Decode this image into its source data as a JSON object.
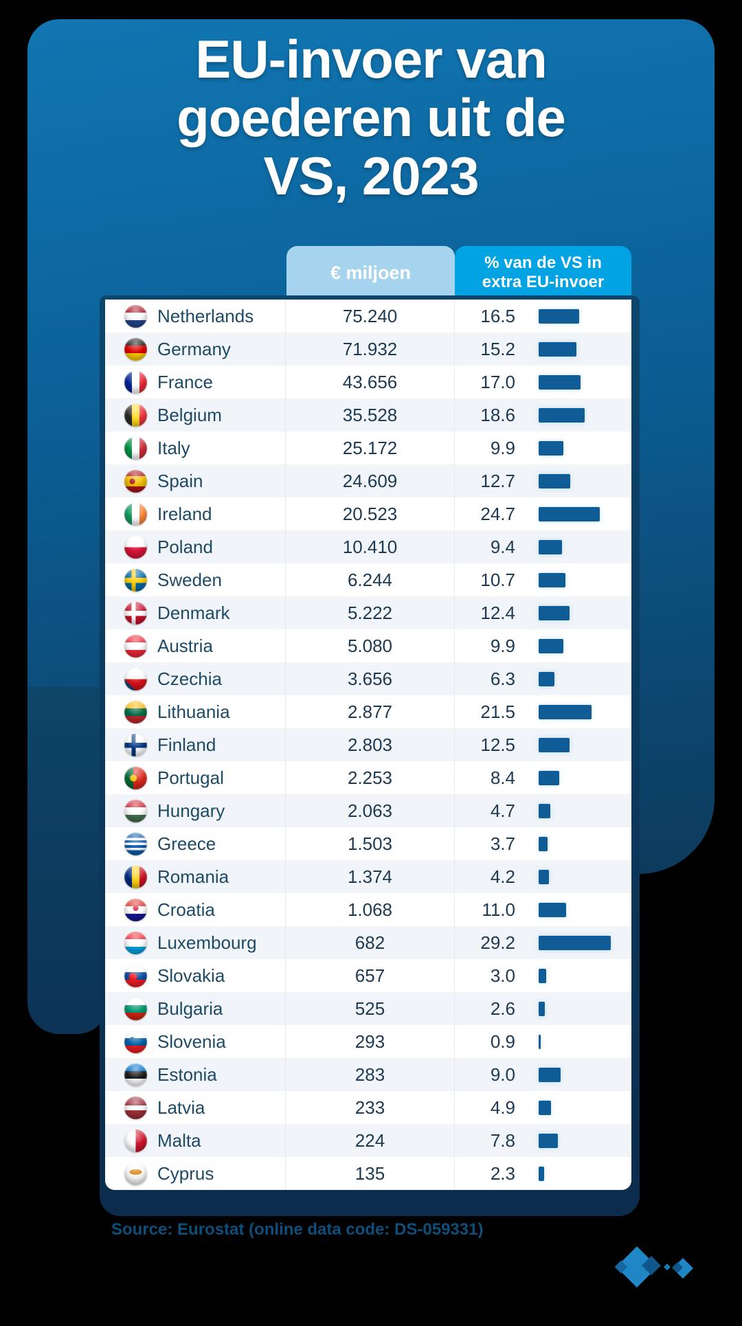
{
  "title": "EU-invoer van goederen uit de VS, 2023",
  "columns": {
    "value_label": "€ miljoen",
    "pct_label_line1": "% van de VS in",
    "pct_label_line2": "extra EU-invoer"
  },
  "source": "Source: Eurostat (online data code: DS-059331)",
  "colors": {
    "card_top": "#1176b2",
    "card_bottom": "#0d3a5c",
    "header_pill_light": "#a6d4ef",
    "header_pill_bright": "#01a3e2",
    "table_frame_navy": "#0d466d",
    "row_alt": "#f1f4f8",
    "bar": "#0f5c96",
    "country_text": "#1c4a67",
    "value_text": "#1c3a53",
    "source_text": "#0d4e7a",
    "logo_bright_blue": "#1f87c5",
    "logo_dark_blue": "#10568a"
  },
  "chart_data": {
    "type": "bar",
    "title": "EU-invoer van goederen uit de VS, 2023",
    "orientation": "horizontal",
    "grid": false,
    "legend_position": "column-headers",
    "categories": [
      "Netherlands",
      "Germany",
      "France",
      "Belgium",
      "Italy",
      "Spain",
      "Ireland",
      "Poland",
      "Sweden",
      "Denmark",
      "Austria",
      "Czechia",
      "Lithuania",
      "Finland",
      "Portugal",
      "Hungary",
      "Greece",
      "Romania",
      "Croatia",
      "Luxembourg",
      "Slovakia",
      "Bulgaria",
      "Slovenia",
      "Estonia",
      "Latvia",
      "Malta",
      "Cyprus"
    ],
    "series": [
      {
        "name": "€ miljoen",
        "values": [
          75240,
          71932,
          43656,
          35528,
          25172,
          24609,
          20523,
          10410,
          6244,
          5222,
          5080,
          3656,
          2877,
          2803,
          2253,
          2063,
          1503,
          1374,
          1068,
          682,
          657,
          525,
          293,
          283,
          233,
          224,
          135
        ]
      },
      {
        "name": "% van de VS in extra EU-invoer",
        "values": [
          16.5,
          15.2,
          17.0,
          18.6,
          9.9,
          12.7,
          24.7,
          9.4,
          10.7,
          12.4,
          9.9,
          6.3,
          21.5,
          12.5,
          8.4,
          4.7,
          3.7,
          4.2,
          11.0,
          29.2,
          3.0,
          2.6,
          0.9,
          9.0,
          4.9,
          7.8,
          2.3
        ],
        "xlim": [
          0,
          30
        ]
      }
    ]
  },
  "countries": [
    {
      "name": "Netherlands",
      "value": "75.240",
      "pct": "16.5",
      "flag_css": "linear-gradient(180deg,#ae1c28 33%,#ffffff 33% 66%,#21468b 66%)"
    },
    {
      "name": "Germany",
      "value": "71.932",
      "pct": "15.2",
      "flag_css": "linear-gradient(180deg,#1a1a1a 33%,#dd0000 33% 66%,#ffce00 66%)"
    },
    {
      "name": "France",
      "value": "43.656",
      "pct": "17.0",
      "flag_css": "linear-gradient(90deg,#002395 33%,#ffffff 33% 66%,#ed2939 66%)"
    },
    {
      "name": "Belgium",
      "value": "35.528",
      "pct": "18.6",
      "flag_css": "linear-gradient(90deg,#2d2926 33%,#fdda24 33% 66%,#ef3340 66%)"
    },
    {
      "name": "Italy",
      "value": "25.172",
      "pct": "9.9",
      "flag_css": "linear-gradient(90deg,#009246 33%,#ffffff 33% 66%,#ce2b37 66%)"
    },
    {
      "name": "Spain",
      "value": "24.609",
      "pct": "12.7",
      "flag_css": "radial-gradient(circle at 35% 50%,#aa151b 0 4px,rgba(0,0,0,0) 4px),linear-gradient(180deg,#aa151b 27%,#f1bf00 27% 73%,#aa151b 73%)"
    },
    {
      "name": "Ireland",
      "value": "20.523",
      "pct": "24.7",
      "flag_css": "linear-gradient(90deg,#169b62 33%,#ffffff 33% 66%,#ff883e 66%)"
    },
    {
      "name": "Poland",
      "value": "10.410",
      "pct": "9.4",
      "flag_css": "linear-gradient(180deg,#ffffff 50%,#dc143c 50%)"
    },
    {
      "name": "Sweden",
      "value": "6.244",
      "pct": "10.7",
      "flag_css": "linear-gradient(180deg,rgba(0,0,0,0) 40%,#fecc02 40% 62%,rgba(0,0,0,0) 62%),linear-gradient(90deg,#006aa7 32%,#fecc02 32% 50%,#006aa7 50%)"
    },
    {
      "name": "Denmark",
      "value": "5.222",
      "pct": "12.4",
      "flag_css": "linear-gradient(180deg,rgba(0,0,0,0) 40%,#ffffff 40% 62%,rgba(0,0,0,0) 62%),linear-gradient(90deg,#c8102e 32%,#ffffff 32% 50%,#c8102e 50%)"
    },
    {
      "name": "Austria",
      "value": "5.080",
      "pct": "9.9",
      "flag_css": "linear-gradient(180deg,#ed2939 33%,#ffffff 33% 66%,#ed2939 66%)"
    },
    {
      "name": "Czechia",
      "value": "3.656",
      "pct": "6.3",
      "flag_css": "conic-gradient(from 135deg at 0% 50%,#11457e 0 90deg,rgba(0,0,0,0) 90deg),linear-gradient(180deg,#ffffff 50%,#d7141a 50%)"
    },
    {
      "name": "Lithuania",
      "value": "2.877",
      "pct": "21.5",
      "flag_css": "linear-gradient(180deg,#fdb913 33%,#006a44 33% 66%,#c1272d 66%)"
    },
    {
      "name": "Finland",
      "value": "2.803",
      "pct": "12.5",
      "flag_css": "linear-gradient(180deg,rgba(0,0,0,0) 40%,#003580 40% 62%,rgba(0,0,0,0) 62%),linear-gradient(90deg,#ffffff 32%,#003580 32% 50%,#ffffff 50%)"
    },
    {
      "name": "Portugal",
      "value": "2.253",
      "pct": "8.4",
      "flag_css": "radial-gradient(circle at 40% 50%,#f1bf00 0 5px,rgba(0,0,0,0) 5px),linear-gradient(90deg,#046a38 40%,#da291c 40%)"
    },
    {
      "name": "Hungary",
      "value": "2.063",
      "pct": "4.7",
      "flag_css": "linear-gradient(180deg,#ce2939 33%,#ffffff 33% 66%,#477050 66%)"
    },
    {
      "name": "Greece",
      "value": "1.503",
      "pct": "3.7",
      "flag_css": "linear-gradient(180deg,#0d5eaf 22%,#ffffff 22% 33%,#0d5eaf 33% 44%,#ffffff 44% 55%,#0d5eaf 55% 66%,#ffffff 66% 77%,#0d5eaf 77%)"
    },
    {
      "name": "Romania",
      "value": "1.374",
      "pct": "4.2",
      "flag_css": "linear-gradient(90deg,#002b7f 33%,#fcd116 33% 66%,#ce1126 66%)"
    },
    {
      "name": "Croatia",
      "value": "1.068",
      "pct": "11.0",
      "flag_css": "radial-gradient(circle at 50% 42%,#d0103a 0 4px,rgba(0,0,0,0) 4px),linear-gradient(180deg,#e03c31 33%,#ffffff 33% 66%,#171796 66%)"
    },
    {
      "name": "Luxembourg",
      "value": "682",
      "pct": "29.2",
      "flag_css": "linear-gradient(180deg,#ef3340 33%,#ffffff 33% 66%,#00a3e0 66%)"
    },
    {
      "name": "Slovakia",
      "value": "657",
      "pct": "3.0",
      "flag_css": "radial-gradient(circle at 38% 55%,#ee1c25 0 6px,rgba(0,0,0,0) 6px),linear-gradient(180deg,#ffffff 33%,#0b4ea2 33% 66%,#ee1c25 66%)"
    },
    {
      "name": "Bulgaria",
      "value": "525",
      "pct": "2.6",
      "flag_css": "linear-gradient(180deg,#ffffff 33%,#00966e 33% 66%,#d62612 66%)"
    },
    {
      "name": "Slovenia",
      "value": "293",
      "pct": "0.9",
      "flag_css": "radial-gradient(circle at 35% 40%,#005da4 0 4px,rgba(0,0,0,0) 4px),linear-gradient(180deg,#ffffff 33%,#005da4 33% 66%,#ed1c24 66%)"
    },
    {
      "name": "Estonia",
      "value": "283",
      "pct": "9.0",
      "flag_css": "linear-gradient(180deg,#0072ce 33%,#1a1a1a 33% 66%,#ffffff 66%)"
    },
    {
      "name": "Latvia",
      "value": "233",
      "pct": "4.9",
      "flag_css": "linear-gradient(180deg,#9e3039 40%,#ffffff 40% 60%,#9e3039 60%)"
    },
    {
      "name": "Malta",
      "value": "224",
      "pct": "7.8",
      "flag_css": "linear-gradient(90deg,#ffffff 50%,#cf142b 50%)"
    },
    {
      "name": "Cyprus",
      "value": "135",
      "pct": "2.3",
      "flag_css": "radial-gradient(ellipse 9px 4px at 50% 42%,#d57800 98%,rgba(0,0,0,0) 100%),linear-gradient(180deg,#ffffff 0%,#f5f5f5 100%)"
    }
  ]
}
